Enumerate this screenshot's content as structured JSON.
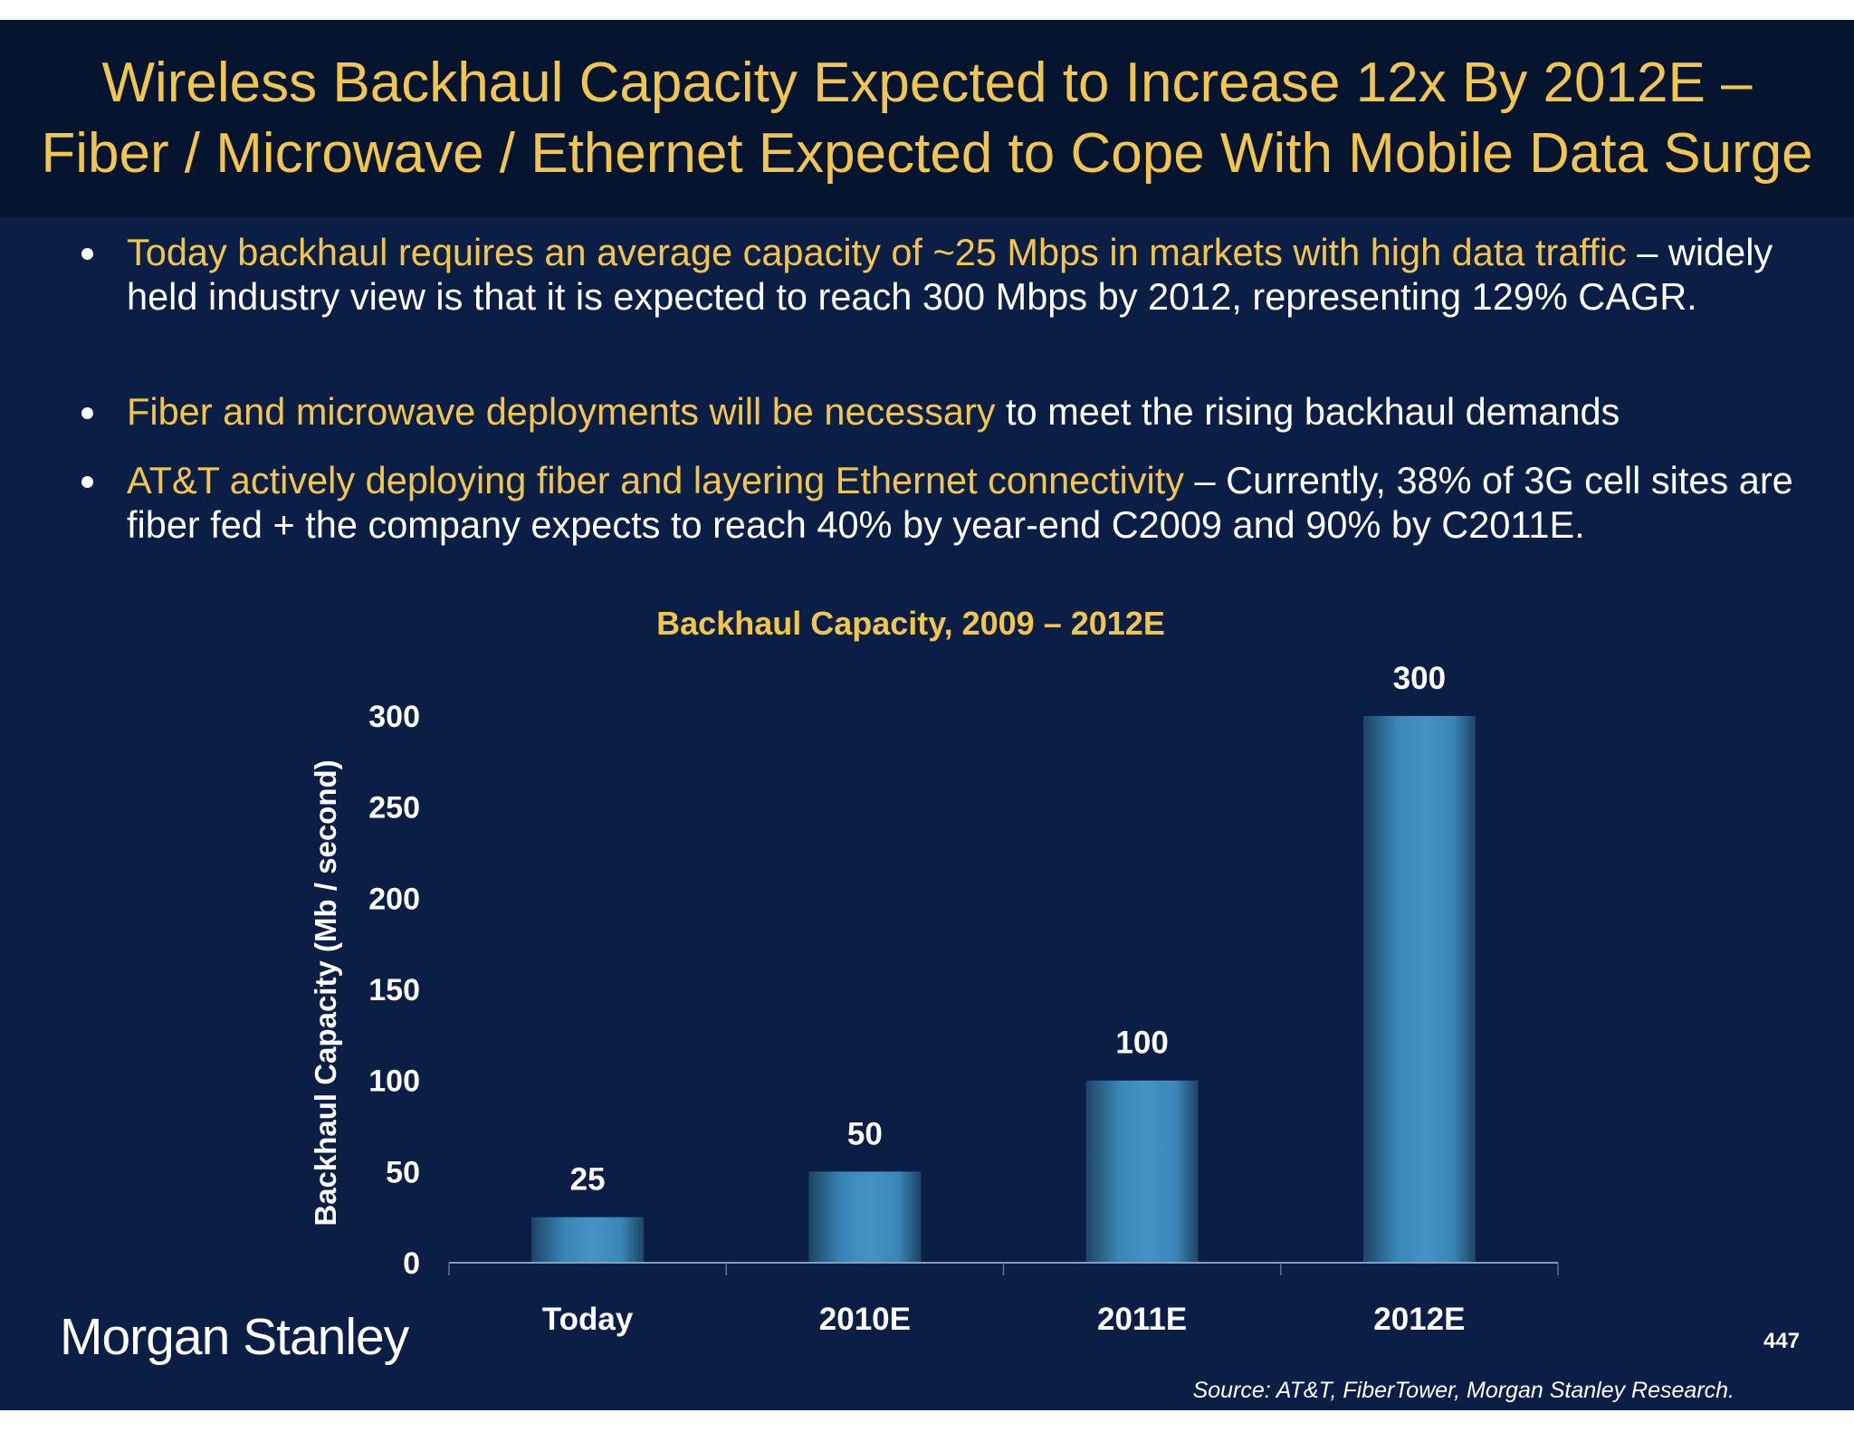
{
  "header": {
    "title_line1": "Wireless Backhaul Capacity Expected to Increase 12x By 2012E –",
    "title_line2": "Fiber / Microwave / Ethernet Expected to Cope With Mobile Data Surge"
  },
  "bullets": [
    {
      "highlight": "Today backhaul requires an average capacity of ~25 Mbps in markets with high data traffic",
      "rest": " – widely held industry view is that it is expected to reach 300 Mbps by 2012, representing 129% CAGR."
    },
    {
      "highlight": "Fiber and microwave deployments will be necessary",
      "rest": " to meet the rising backhaul demands"
    },
    {
      "highlight": "AT&T actively deploying fiber and layering Ethernet connectivity",
      "rest": " – Currently, 38% of 3G cell sites are fiber fed + the company expects to reach 40% by year-end C2009 and 90% by C2011E."
    }
  ],
  "chart_data": {
    "type": "bar",
    "title": "Backhaul Capacity, 2009 – 2012E",
    "xlabel": "",
    "ylabel": "Backhaul Capacity (Mb / second)",
    "categories": [
      "Today",
      "2010E",
      "2011E",
      "2012E"
    ],
    "values": [
      25,
      50,
      100,
      300
    ],
    "data_labels": [
      "25",
      "50",
      "100",
      "300"
    ],
    "ylim": [
      0,
      300
    ],
    "yticks": [
      "0",
      "50",
      "100",
      "150",
      "200",
      "250",
      "300"
    ],
    "grid": false,
    "legend": "none",
    "bar_color": "#3f8fc0"
  },
  "footer": {
    "logo": "Morgan Stanley",
    "page_number": "447",
    "source": "Source: AT&T, FiberTower, Morgan Stanley Research."
  },
  "colors": {
    "title": "#f2c64c",
    "background": "#0b1e45",
    "header_background": "#05142f"
  }
}
